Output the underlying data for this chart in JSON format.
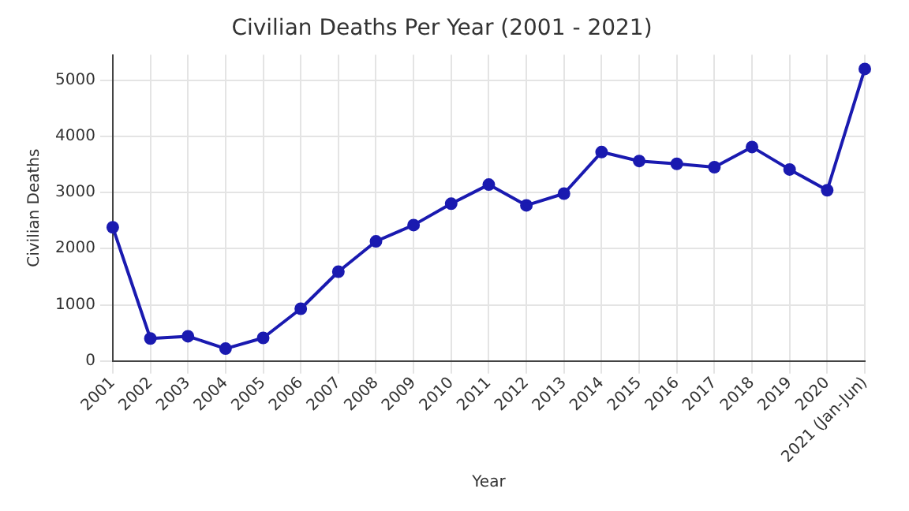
{
  "chart_data": {
    "type": "line",
    "title": "Civilian Deaths Per Year (2001 - 2021)",
    "xlabel": "Year",
    "ylabel": "Civilian Deaths",
    "categories": [
      "2001",
      "2002",
      "2003",
      "2004",
      "2005",
      "2006",
      "2007",
      "2008",
      "2009",
      "2010",
      "2011",
      "2012",
      "2013",
      "2014",
      "2015",
      "2016",
      "2017",
      "2018",
      "2019",
      "2020",
      "2021 (Jan-Jun)"
    ],
    "series": [
      {
        "color": "#1a1ab0",
        "values": [
          2380,
          400,
          440,
          220,
          410,
          930,
          1590,
          2130,
          2420,
          2800,
          3140,
          2770,
          2980,
          3720,
          3560,
          3510,
          3450,
          3810,
          3410,
          3040,
          5200
        ]
      }
    ],
    "ylim": [
      0,
      5450
    ],
    "yticks": [
      0,
      1000,
      2000,
      3000,
      4000,
      5000
    ],
    "grid": true,
    "legend": false,
    "marker": "circle",
    "line_style": "solid"
  }
}
